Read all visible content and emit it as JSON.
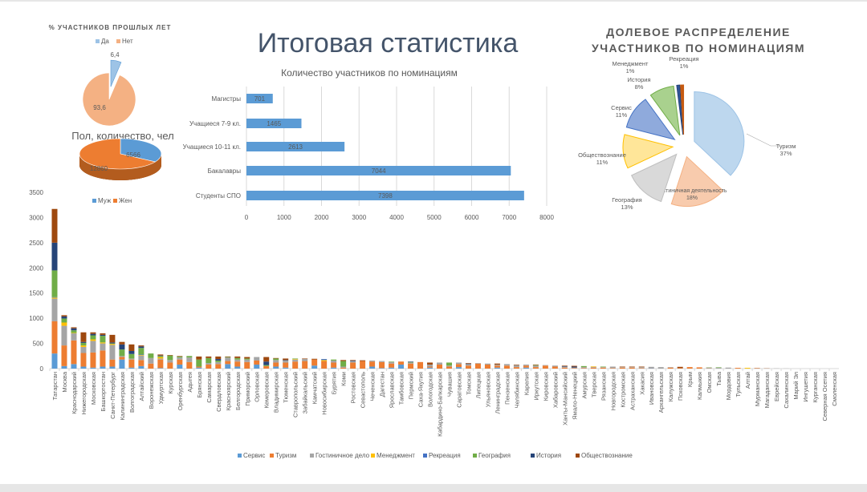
{
  "title": "Итоговая статистика",
  "chart_data": [
    {
      "type": "pie",
      "title": "% УЧАСТНИКОВ ПРОШЛЫХ ЛЕТ",
      "categories": [
        "Да",
        "Нет"
      ],
      "values": [
        6.4,
        93.6
      ],
      "labels": [
        "6,4",
        "93,6"
      ],
      "colors": [
        "#9dc3e6",
        "#f4b183"
      ],
      "legend": "top"
    },
    {
      "type": "pie",
      "title": "Пол, количество, чел",
      "categories": [
        "Муж",
        "Жен"
      ],
      "values": [
        6566,
        12860
      ],
      "labels": [
        "6566",
        "12860"
      ],
      "colors": [
        "#5b9bd5",
        "#ed7d31"
      ],
      "legend": "bottom"
    },
    {
      "type": "bar",
      "orientation": "horizontal",
      "title": "Количество участников по номинациям",
      "categories": [
        "Магистры",
        "Учащиеся 7-9 кл.",
        "Учащиеся 10-11 кл.",
        "Бакалавры",
        "Студенты СПО"
      ],
      "values": [
        701,
        1465,
        2613,
        7044,
        7398
      ],
      "xlim": [
        0,
        8000
      ],
      "ticks": [
        "0",
        "1000",
        "2000",
        "3000",
        "4000",
        "5000",
        "6000",
        "7000",
        "8000"
      ],
      "color": "#5b9bd5",
      "grid": true
    },
    {
      "type": "pie",
      "title_lines": [
        "ДОЛЕВОЕ РАСПРЕДЕЛЕНИЕ",
        "УЧАСТНИКОВ ПО НОМИНАЦИЯМ"
      ],
      "slices": [
        {
          "name": "Туризм",
          "pct": 37,
          "label": "37%",
          "color": "#bdd7ee"
        },
        {
          "name": "Гостиничная деятельность",
          "pct": 18,
          "label": "18%",
          "color": "#f8cbad"
        },
        {
          "name": "География",
          "pct": 13,
          "label": "13%",
          "color": "#d9d9d9"
        },
        {
          "name": "Обществознание",
          "pct": 11,
          "label": "11%",
          "color": "#ffe699"
        },
        {
          "name": "Сервис",
          "pct": 11,
          "label": "11%",
          "color": "#8faadc"
        },
        {
          "name": "История",
          "pct": 8,
          "label": "8%",
          "color": "#a9d18e"
        },
        {
          "name": "Менеджмент",
          "pct": 1,
          "label": "1%",
          "color": "#2f5597"
        },
        {
          "name": "Рекреация",
          "pct": 1,
          "label": "1%",
          "color": "#c55a11"
        }
      ]
    },
    {
      "type": "bar",
      "stacked": true,
      "ylim": [
        0,
        3500
      ],
      "yticks": [
        "0",
        "500",
        "1000",
        "1500",
        "2000",
        "2500",
        "3000",
        "3500"
      ],
      "legend": "bottom",
      "series": [
        {
          "name": "Сервис",
          "color": "#5b9bd5"
        },
        {
          "name": "Туризм",
          "color": "#ed7d31"
        },
        {
          "name": "Гостиничное дело",
          "color": "#a5a5a5"
        },
        {
          "name": "Менеджмент",
          "color": "#ffc000"
        },
        {
          "name": "Рекреация",
          "color": "#4472c4"
        },
        {
          "name": "География",
          "color": "#70ad47"
        },
        {
          "name": "История",
          "color": "#264478"
        },
        {
          "name": "Обществознание",
          "color": "#9e480e"
        }
      ],
      "categories": [
        "Татарстан",
        "Москва",
        "Краснодарский",
        "Нижегородская",
        "Московская",
        "Башкортостан",
        "Санкт-Петербург",
        "Калининградская",
        "Волгоградская",
        "Алтайский",
        "Воронежская",
        "Удмуртская",
        "Курская",
        "Оренбургская",
        "Адыгея",
        "Брянская",
        "Самарская",
        "Свердловская",
        "Красноярский",
        "Белгородская",
        "Приморский",
        "Орловская",
        "Кемеровская",
        "Владимирская",
        "Тюменская",
        "Ставропольский",
        "Забайкальский",
        "Камчатский",
        "Новосибирская",
        "Бурятия",
        "Коми",
        "Ростовская",
        "Севастополь",
        "Чеченская",
        "Дагестан",
        "Ярославская",
        "Тамбовская",
        "Пермский",
        "Саха-Якутия",
        "Вологодская",
        "Кабардино-Балкарская",
        "Чувашия",
        "Саратовская",
        "Томская",
        "Липецкая",
        "Ульяновская",
        "Ленинградская",
        "Пензенская",
        "Челябинская",
        "Карелия",
        "Иркутская",
        "Кировская",
        "Хабаровский",
        "Ханты-Мансийский",
        "Ямало-Ненецкий",
        "Амурская",
        "Тверская",
        "Рязанская",
        "Новгородская",
        "Костромская",
        "Астраханская",
        "Хакасия",
        "Ивановская",
        "Архангельская",
        "Калужская",
        "Псковская",
        "Крым",
        "Калмыкия",
        "Омская",
        "Тыва",
        "Мордовия",
        "Тульская",
        "Алтай",
        "Мурманская",
        "Магаданская",
        "Еврейская",
        "Сахалинская",
        "Марий Эл",
        "Ингушетия",
        "Курганская",
        "Северная Осетия",
        "Смоленская"
      ],
      "values": [
        [
          300,
          640,
          450,
          20,
          10,
          530,
          550,
          670
        ],
        [
          50,
          410,
          390,
          65,
          0,
          80,
          40,
          25
        ],
        [
          90,
          470,
          140,
          10,
          0,
          50,
          40,
          20
        ],
        [
          40,
          270,
          120,
          30,
          0,
          50,
          20,
          190
        ],
        [
          20,
          300,
          230,
          30,
          0,
          80,
          30,
          30
        ],
        [
          40,
          320,
          140,
          20,
          0,
          130,
          20,
          30
        ],
        [
          40,
          140,
          290,
          20,
          0,
          10,
          20,
          150
        ],
        [
          180,
          50,
          20,
          0,
          0,
          130,
          100,
          50
        ],
        [
          20,
          160,
          20,
          0,
          0,
          90,
          60,
          130
        ],
        [
          50,
          120,
          90,
          10,
          10,
          130,
          30,
          20
        ],
        [
          0,
          100,
          110,
          0,
          0,
          90,
          0,
          0
        ],
        [
          10,
          170,
          20,
          30,
          0,
          20,
          10,
          20
        ],
        [
          0,
          120,
          50,
          0,
          0,
          90,
          0,
          10
        ],
        [
          80,
          100,
          40,
          0,
          0,
          20,
          0,
          10
        ],
        [
          0,
          130,
          90,
          0,
          0,
          30,
          0,
          0
        ],
        [
          20,
          20,
          0,
          0,
          0,
          140,
          0,
          60
        ],
        [
          0,
          80,
          30,
          0,
          0,
          100,
          0,
          30
        ],
        [
          0,
          90,
          40,
          0,
          0,
          30,
          30,
          50
        ],
        [
          90,
          60,
          70,
          0,
          0,
          10,
          0,
          10
        ],
        [
          40,
          100,
          40,
          0,
          0,
          30,
          0,
          30
        ],
        [
          0,
          130,
          50,
          0,
          0,
          20,
          0,
          30
        ],
        [
          80,
          80,
          70,
          0,
          0,
          0,
          0,
          0
        ],
        [
          0,
          50,
          0,
          0,
          0,
          20,
          70,
          90
        ],
        [
          40,
          80,
          50,
          0,
          0,
          30,
          0,
          10
        ],
        [
          20,
          100,
          40,
          0,
          0,
          0,
          10,
          30
        ],
        [
          0,
          140,
          40,
          10,
          0,
          10,
          0,
          0
        ],
        [
          0,
          150,
          40,
          0,
          0,
          0,
          0,
          10
        ],
        [
          60,
          120,
          0,
          0,
          0,
          0,
          0,
          15
        ],
        [
          0,
          150,
          0,
          20,
          20,
          0,
          0,
          0
        ],
        [
          20,
          100,
          40,
          0,
          0,
          20,
          0,
          0
        ],
        [
          0,
          20,
          20,
          0,
          0,
          110,
          0,
          20
        ],
        [
          0,
          120,
          30,
          0,
          0,
          0,
          10,
          10
        ],
        [
          0,
          150,
          0,
          0,
          0,
          0,
          0,
          15
        ],
        [
          40,
          100,
          20,
          0,
          0,
          0,
          0,
          0
        ],
        [
          10,
          120,
          20,
          0,
          0,
          0,
          0,
          0
        ],
        [
          20,
          80,
          30,
          0,
          0,
          10,
          0,
          0
        ],
        [
          80,
          60,
          0,
          0,
          0,
          0,
          0,
          0
        ],
        [
          0,
          100,
          20,
          0,
          0,
          10,
          10,
          0
        ],
        [
          0,
          130,
          0,
          0,
          0,
          0,
          0,
          0
        ],
        [
          20,
          20,
          40,
          0,
          0,
          0,
          0,
          40
        ],
        [
          0,
          80,
          40,
          0,
          0,
          0,
          0,
          0
        ],
        [
          0,
          40,
          20,
          0,
          0,
          60,
          0,
          0
        ],
        [
          30,
          60,
          30,
          0,
          0,
          0,
          0,
          0
        ],
        [
          0,
          60,
          30,
          0,
          0,
          0,
          10,
          10
        ],
        [
          0,
          100,
          10,
          0,
          0,
          0,
          0,
          0
        ],
        [
          0,
          80,
          20,
          0,
          0,
          0,
          0,
          0
        ],
        [
          20,
          40,
          20,
          0,
          0,
          0,
          0,
          20
        ],
        [
          0,
          60,
          30,
          0,
          0,
          0,
          0,
          0
        ],
        [
          0,
          30,
          40,
          0,
          0,
          0,
          0,
          10
        ],
        [
          20,
          40,
          20,
          0,
          0,
          0,
          0,
          0
        ],
        [
          0,
          30,
          30,
          0,
          0,
          10,
          0,
          10
        ],
        [
          0,
          60,
          10,
          0,
          0,
          0,
          0,
          0
        ],
        [
          0,
          40,
          20,
          0,
          0,
          0,
          0,
          0
        ],
        [
          0,
          20,
          20,
          0,
          0,
          0,
          10,
          10
        ],
        [
          0,
          10,
          10,
          0,
          0,
          0,
          20,
          15
        ],
        [
          0,
          10,
          20,
          0,
          0,
          20,
          0,
          0
        ],
        [
          0,
          20,
          15,
          10,
          0,
          0,
          0,
          0
        ],
        [
          0,
          20,
          10,
          0,
          0,
          10,
          0,
          0
        ],
        [
          0,
          10,
          30,
          0,
          0,
          0,
          0,
          0
        ],
        [
          0,
          20,
          10,
          0,
          0,
          0,
          0,
          10
        ],
        [
          0,
          20,
          10,
          0,
          0,
          0,
          0,
          10
        ],
        [
          0,
          10,
          20,
          0,
          0,
          0,
          0,
          10
        ],
        [
          10,
          5,
          20,
          0,
          0,
          0,
          0,
          0
        ],
        [
          0,
          0,
          30,
          0,
          0,
          0,
          0,
          0
        ],
        [
          0,
          20,
          10,
          0,
          0,
          0,
          0,
          0
        ],
        [
          0,
          10,
          0,
          0,
          0,
          0,
          0,
          25
        ],
        [
          0,
          30,
          0,
          0,
          0,
          0,
          0,
          0
        ],
        [
          0,
          25,
          0,
          0,
          0,
          0,
          0,
          0
        ],
        [
          0,
          5,
          15,
          0,
          0,
          5,
          0,
          0
        ],
        [
          0,
          0,
          15,
          0,
          0,
          10,
          0,
          0
        ],
        [
          0,
          0,
          20,
          0,
          0,
          0,
          0,
          0
        ],
        [
          0,
          15,
          0,
          0,
          0,
          0,
          0,
          0
        ],
        [
          0,
          0,
          0,
          15,
          0,
          0,
          0,
          0
        ],
        [
          0,
          10,
          5,
          0,
          0,
          0,
          0,
          0
        ],
        [
          0,
          5,
          5,
          0,
          0,
          0,
          0,
          0
        ],
        [
          0,
          0,
          5,
          0,
          0,
          0,
          0,
          0
        ],
        [
          0,
          0,
          3,
          0,
          0,
          0,
          0,
          0
        ],
        [
          0,
          0,
          0,
          0,
          0,
          0,
          0,
          0
        ],
        [
          0,
          0,
          0,
          0,
          0,
          0,
          0,
          0
        ],
        [
          0,
          0,
          0,
          0,
          0,
          0,
          0,
          0
        ],
        [
          0,
          0,
          0,
          0,
          0,
          0,
          0,
          0
        ],
        [
          0,
          0,
          0,
          0,
          0,
          0,
          0,
          0
        ]
      ]
    }
  ]
}
